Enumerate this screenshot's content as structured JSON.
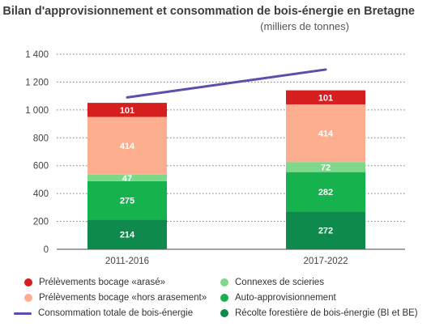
{
  "chart_data": {
    "type": "bar",
    "title": "Bilan d'approvisionnement et consommation de bois-énergie en Bretagne",
    "subtitle": "(milliers de tonnes)",
    "categories": [
      "2011-2016",
      "2017-2022"
    ],
    "ylim": [
      0,
      1400
    ],
    "yticks": [
      0,
      200,
      400,
      600,
      800,
      1000,
      1200,
      1400
    ],
    "grid": true,
    "legend_placement": "bottom",
    "series": [
      {
        "name": "Récolte forestière de bois-énergie (BI et BE)",
        "values": [
          214,
          272
        ],
        "color": "#0d8a4c"
      },
      {
        "name": "Auto-approvisionnement",
        "values": [
          275,
          282
        ],
        "color": "#15b24e"
      },
      {
        "name": "Connexes de scieries",
        "values": [
          47,
          72
        ],
        "color": "#7dd88a"
      },
      {
        "name": "Prélèvements bocage «hors arasement»",
        "values": [
          414,
          414
        ],
        "color": "#fcae8e"
      },
      {
        "name": "Prélèvements bocage «arasé»",
        "values": [
          101,
          101
        ],
        "color": "#d61f1f"
      }
    ],
    "line": {
      "name": "Consommation totale de bois-énergie",
      "values": [
        1090,
        1290
      ],
      "color": "#5a4fad"
    }
  },
  "legend": {
    "col1": [
      {
        "label": "Prélèvements bocage «arasé»",
        "color": "#d61f1f",
        "kind": "dot"
      },
      {
        "label": "Prélèvements bocage «hors arasement»",
        "color": "#fcae8e",
        "kind": "dot"
      },
      {
        "label": "Consommation totale de bois-énergie",
        "color": "#5a4fad",
        "kind": "line"
      }
    ],
    "col2": [
      {
        "label": "Connexes de scieries",
        "color": "#7dd88a",
        "kind": "dot"
      },
      {
        "label": "Auto-approvisionnement",
        "color": "#15b24e",
        "kind": "dot"
      },
      {
        "label": "Récolte forestière de bois-énergie (BI et BE)",
        "color": "#0d8a4c",
        "kind": "dot"
      }
    ]
  }
}
